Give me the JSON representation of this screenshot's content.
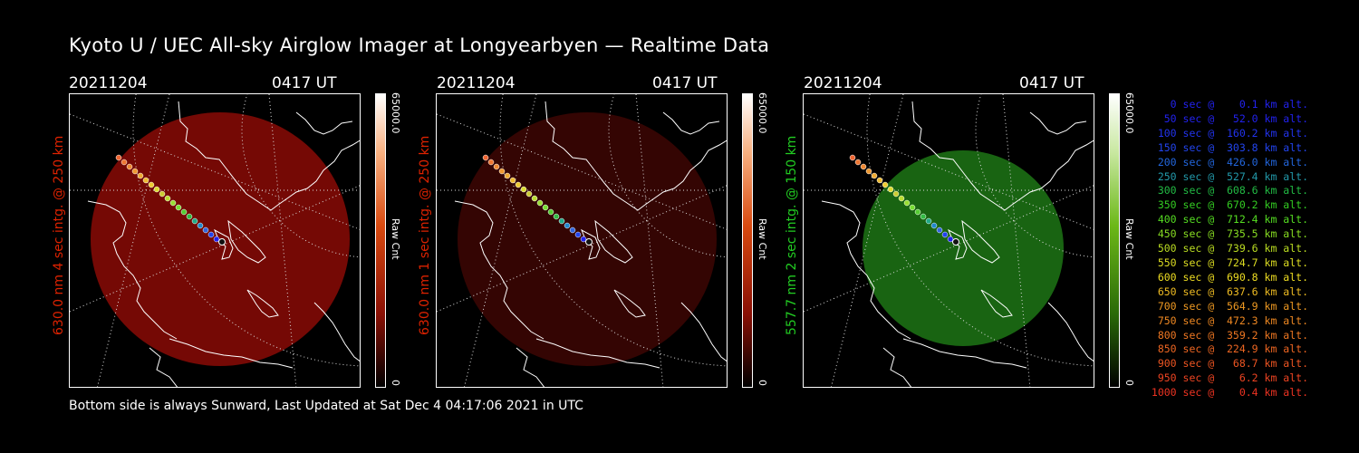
{
  "title": "Kyoto U / UEC All-sky Airglow Imager at Longyearbyen — Realtime Data",
  "footer": "Bottom side is always Sunward, Last Updated at Sat Dec  4 04:17:06 2021 in UTC",
  "panels": [
    {
      "date": "20211204",
      "time": "0417 UT",
      "side_label": "630.0 nm 4 sec intg. @ 250 km",
      "label_color": "#dd2200",
      "cbar_max": "65000.0",
      "cbar_unit": "Raw Cnt",
      "cbar_min": "0",
      "image_color": "#8a0a06",
      "image_opacity": 0.85
    },
    {
      "date": "20211204",
      "time": "0417 UT",
      "side_label": "630.0 nm 1 sec intg. @ 250 km",
      "label_color": "#dd2200",
      "cbar_max": "65000.0",
      "cbar_unit": "Raw Cnt",
      "cbar_min": "0",
      "image_color": "#3a0503",
      "image_opacity": 0.9
    },
    {
      "date": "20211204",
      "time": "0417 UT",
      "side_label": "557.7 nm 2 sec intg. @ 150 km",
      "label_color": "#22cc22",
      "cbar_max": "65000.0",
      "cbar_unit": "Raw Cnt",
      "cbar_min": "0",
      "image_color": "#1c6f14",
      "image_opacity": 0.9
    }
  ],
  "legend": [
    {
      "text": "0 sec @    0.1 km alt.",
      "color": "#2222ee"
    },
    {
      "text": "50 sec @   52.0 km alt.",
      "color": "#2222ee"
    },
    {
      "text": "100 sec @  160.2 km alt.",
      "color": "#2233ee"
    },
    {
      "text": "150 sec @  303.8 km alt.",
      "color": "#2244ee"
    },
    {
      "text": "200 sec @  426.0 km alt.",
      "color": "#2266dd"
    },
    {
      "text": "250 sec @  527.4 km alt.",
      "color": "#2299aa"
    },
    {
      "text": "300 sec @  608.6 km alt.",
      "color": "#22bb44"
    },
    {
      "text": "350 sec @  670.2 km alt.",
      "color": "#33cc22"
    },
    {
      "text": "400 sec @  712.4 km alt.",
      "color": "#55dd22"
    },
    {
      "text": "450 sec @  735.5 km alt.",
      "color": "#88dd22"
    },
    {
      "text": "500 sec @  739.6 km alt.",
      "color": "#bbdd22"
    },
    {
      "text": "550 sec @  724.7 km alt.",
      "color": "#dddd22"
    },
    {
      "text": "600 sec @  690.8 km alt.",
      "color": "#eedd22"
    },
    {
      "text": "650 sec @  637.6 km alt.",
      "color": "#eebb22"
    },
    {
      "text": "700 sec @  564.9 km alt.",
      "color": "#ee9922"
    },
    {
      "text": "750 sec @  472.3 km alt.",
      "color": "#ee8822"
    },
    {
      "text": "800 sec @  359.2 km alt.",
      "color": "#ee7722"
    },
    {
      "text": "850 sec @  224.9 km alt.",
      "color": "#ee6622"
    },
    {
      "text": "900 sec @   68.7 km alt.",
      "color": "#ee5522"
    },
    {
      "text": "950 sec @    6.2 km alt.",
      "color": "#ee4422"
    },
    {
      "text": "1000 sec @    0.4 km alt.",
      "color": "#ee3322"
    }
  ]
}
